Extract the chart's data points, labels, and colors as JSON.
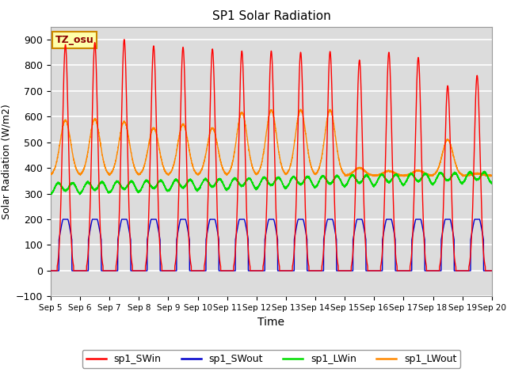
{
  "title": "SP1 Solar Radiation",
  "xlabel": "Time",
  "ylabel": "Solar Radiation (W/m2)",
  "ylim": [
    -100,
    950
  ],
  "yticks": [
    -100,
    0,
    100,
    200,
    300,
    400,
    500,
    600,
    700,
    800,
    900
  ],
  "bg_color": "#dcdcdc",
  "grid_color": "white",
  "tz_label": "TZ_osu",
  "colors": {
    "SWin": "#ff0000",
    "SWout": "#0000cc",
    "LWin": "#00dd00",
    "LWout": "#ff8800"
  },
  "legend_labels": [
    "sp1_SWin",
    "sp1_SWout",
    "sp1_LWin",
    "sp1_LWout"
  ],
  "xticklabels": [
    "Sep 5",
    "Sep 6",
    "Sep 7",
    "Sep 8",
    "Sep 9",
    "Sep 10",
    "Sep 11",
    "Sep 12",
    "Sep 13",
    "Sep 14",
    "Sep 15",
    "Sep 16",
    "Sep 17",
    "Sep 18",
    "Sep 19",
    "Sep 20"
  ],
  "n_days": 15,
  "pts_per_day": 288,
  "sw_in_peaks": [
    880,
    888,
    900,
    875,
    870,
    863,
    855,
    855,
    850,
    853,
    820,
    850,
    830,
    720,
    760
  ],
  "lw_out_peaks": [
    585,
    590,
    580,
    555,
    570,
    555,
    615,
    625,
    625,
    625,
    400,
    388,
    390,
    510,
    378
  ],
  "lw_out_base": 370,
  "lw_in_base": 325,
  "sw_out_peak": 200
}
